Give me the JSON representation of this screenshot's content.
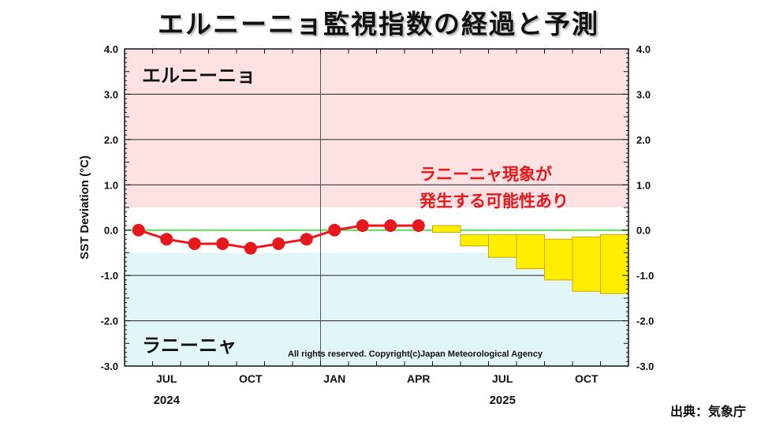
{
  "title": "エルニーニョ監視指数の経過と予測",
  "source": "出典：気象庁",
  "chart_data": {
    "type": "line",
    "ylabel": "SST Deviation (°C)",
    "ylim": [
      -3.0,
      4.0
    ],
    "y_ticks": [
      "4.0",
      "3.0",
      "2.0",
      "1.0",
      "0.0",
      "-1.0",
      "-2.0",
      "-3.0"
    ],
    "y_tick_values": [
      4,
      3,
      2,
      1,
      0,
      -1,
      -2,
      -3
    ],
    "months": [
      "2024-06",
      "2024-07",
      "2024-08",
      "2024-09",
      "2024-10",
      "2024-11",
      "2024-12",
      "2025-01",
      "2025-02",
      "2025-03",
      "2025-04",
      "2025-05",
      "2025-06",
      "2025-07",
      "2025-08",
      "2025-09",
      "2025-10",
      "2025-11"
    ],
    "x_ticks": [
      {
        "label": "JUL",
        "month": "2024-07"
      },
      {
        "label": "OCT",
        "month": "2024-10"
      },
      {
        "label": "JAN",
        "month": "2025-01"
      },
      {
        "label": "APR",
        "month": "2025-04"
      },
      {
        "label": "JUL",
        "month": "2025-07"
      },
      {
        "label": "OCT",
        "month": "2025-10"
      }
    ],
    "year_labels": [
      {
        "label": "2024",
        "month": "2024-07"
      },
      {
        "label": "2025",
        "month": "2025-07"
      }
    ],
    "year_divider_month": "2024-12",
    "regions": [
      {
        "name": "エルニーニョ",
        "from": 0.5,
        "to": 4.0,
        "color": "#fde2e4"
      },
      {
        "name": "ラニーニャ",
        "from": -3.0,
        "to": -0.5,
        "color": "#e2f6f8"
      }
    ],
    "zero_line_color": "#55dd55",
    "series": [
      {
        "color": "#e8171b",
        "points": [
          {
            "month": "2024-06",
            "value": 0.0
          },
          {
            "month": "2024-07",
            "value": -0.2
          },
          {
            "month": "2024-08",
            "value": -0.3
          },
          {
            "month": "2024-09",
            "value": -0.3
          },
          {
            "month": "2024-10",
            "value": -0.4
          },
          {
            "month": "2024-11",
            "value": -0.3
          },
          {
            "month": "2024-12",
            "value": -0.2
          },
          {
            "month": "2025-01",
            "value": 0.0
          },
          {
            "month": "2025-02",
            "value": 0.1
          },
          {
            "month": "2025-03",
            "value": 0.1
          },
          {
            "month": "2025-04",
            "value": 0.1
          }
        ]
      }
    ],
    "forecast": {
      "color": "#ffee00",
      "border": "#c9a800",
      "boxes": [
        {
          "month": "2025-05",
          "low": -0.05,
          "high": 0.1
        },
        {
          "month": "2025-06",
          "low": -0.35,
          "high": -0.1
        },
        {
          "month": "2025-07",
          "low": -0.6,
          "high": -0.1
        },
        {
          "month": "2025-08",
          "low": -0.85,
          "high": -0.1
        },
        {
          "month": "2025-09",
          "low": -1.1,
          "high": -0.2
        },
        {
          "month": "2025-10",
          "low": -1.35,
          "high": -0.15
        },
        {
          "month": "2025-11",
          "low": -1.4,
          "high": -0.1
        }
      ]
    },
    "region_labels": {
      "elnino": "エルニーニョ",
      "lanina": "ラニーニャ"
    },
    "annotation": {
      "line1": "ラニーニャ現象が",
      "line2": "発生する可能性あり",
      "color": "#e8171b"
    },
    "copyright": "All rights reserved. Copyright(c)Japan Meteorological Agency"
  }
}
